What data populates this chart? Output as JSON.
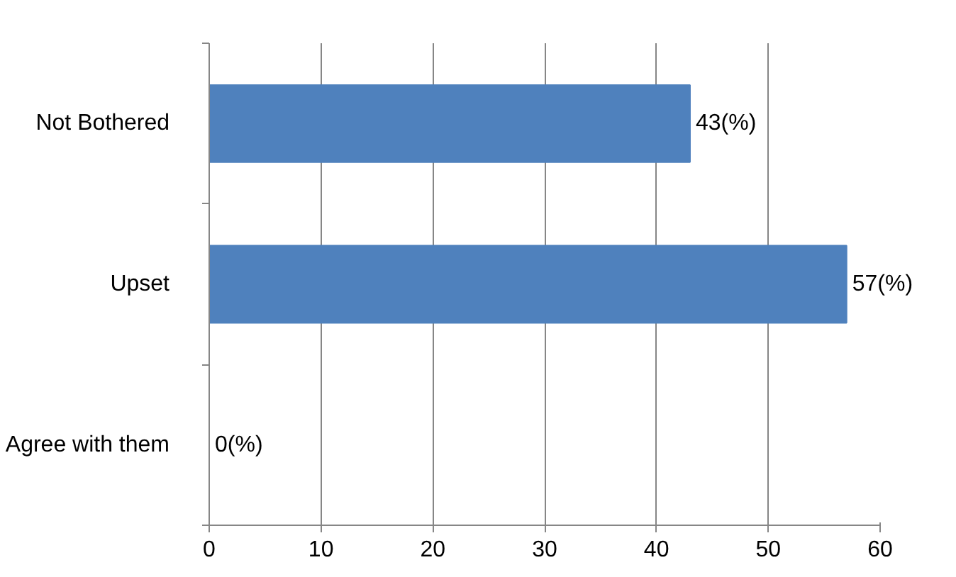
{
  "chart_data": {
    "type": "bar",
    "orientation": "horizontal",
    "categories": [
      "Not Bothered",
      "Upset",
      "Agree with them"
    ],
    "values": [
      43,
      57,
      0
    ],
    "value_labels": [
      "43(%)",
      "57(%)",
      "0(%)"
    ],
    "color": "#4f81bd",
    "xlim": [
      0,
      60
    ],
    "xticks": [
      0,
      10,
      20,
      30,
      40,
      50,
      60
    ],
    "grid": "x"
  }
}
